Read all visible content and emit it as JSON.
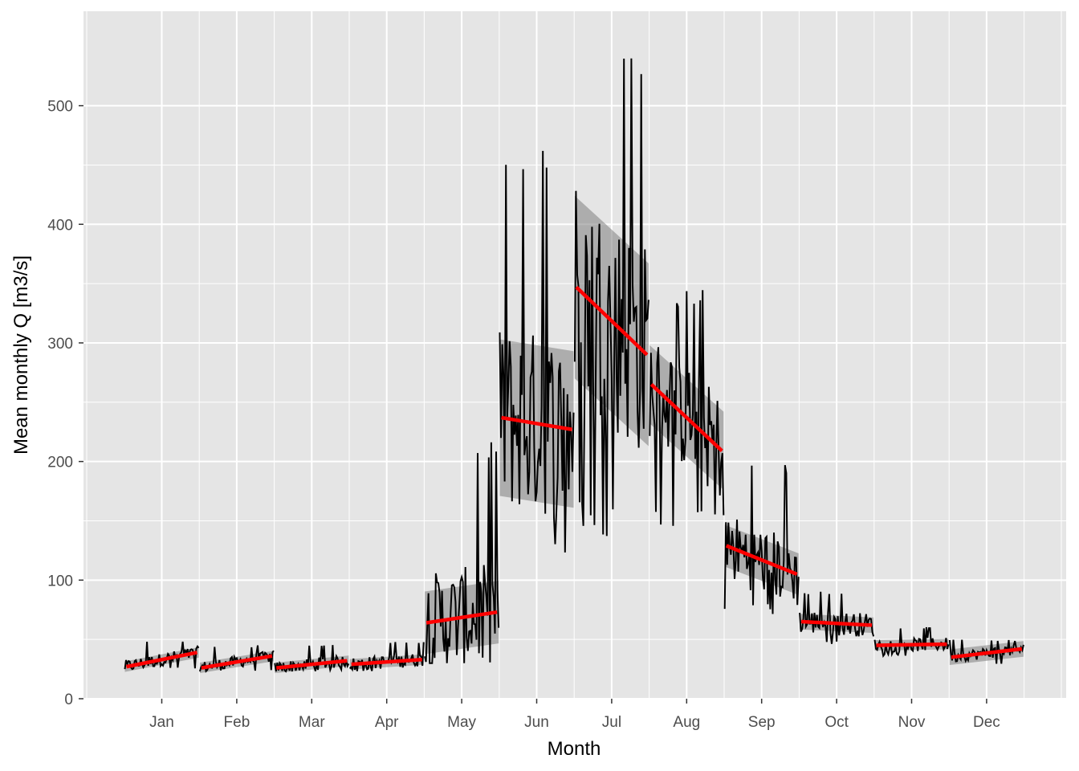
{
  "chart_data": {
    "type": "line",
    "title": "",
    "xlabel": "Month",
    "ylabel": "Mean monthly Q [m3/s]",
    "categories": [
      "Jan",
      "Feb",
      "Mar",
      "Apr",
      "May",
      "Jun",
      "Jul",
      "Aug",
      "Sep",
      "Oct",
      "Nov",
      "Dec"
    ],
    "yticks": [
      0,
      100,
      200,
      300,
      400,
      500
    ],
    "ylim": [
      -6,
      553
    ],
    "grid": true,
    "legend": "none",
    "colors": {
      "panel": "#e5e5e5",
      "grid": "#ffffff",
      "series": "#000000",
      "trend": "#ff0000",
      "band": "#7f7f7f"
    },
    "months": [
      {
        "month": "Jan",
        "min": 25,
        "max": 49,
        "mean": 32,
        "trend": [
          27,
          39
        ],
        "band": 2
      },
      {
        "month": "Feb",
        "min": 23,
        "max": 45,
        "mean": 30,
        "trend": [
          26,
          36
        ],
        "band": 2
      },
      {
        "month": "Mar",
        "min": 23,
        "max": 46,
        "mean": 28,
        "trend": [
          26,
          32
        ],
        "band": 2
      },
      {
        "month": "Apr",
        "min": 23,
        "max": 48,
        "mean": 30,
        "trend": [
          29,
          33
        ],
        "band": 2
      },
      {
        "month": "May",
        "min": 30,
        "max": 218,
        "mean": 68,
        "trend": [
          64,
          73
        ],
        "band": 12
      },
      {
        "month": "Jun",
        "min": 117,
        "max": 468,
        "mean": 232,
        "trend": [
          237,
          227
        ],
        "band": 30
      },
      {
        "month": "Jul",
        "min": 135,
        "max": 553,
        "mean": 318,
        "trend": [
          347,
          290
        ],
        "band": 35
      },
      {
        "month": "Aug",
        "min": 145,
        "max": 346,
        "mean": 238,
        "trend": [
          265,
          209
        ],
        "band": 15
      },
      {
        "month": "Sep",
        "min": 70,
        "max": 200,
        "mean": 117,
        "trend": [
          129,
          105
        ],
        "band": 8
      },
      {
        "month": "Oct",
        "min": 46,
        "max": 91,
        "mean": 63,
        "trend": [
          65,
          62
        ],
        "band": 3
      },
      {
        "month": "Nov",
        "min": 36,
        "max": 61,
        "mean": 45,
        "trend": [
          45,
          46
        ],
        "band": 2
      },
      {
        "month": "Dec",
        "min": 29,
        "max": 50,
        "mean": 38,
        "trend": [
          35,
          42
        ],
        "band": 3
      }
    ]
  }
}
